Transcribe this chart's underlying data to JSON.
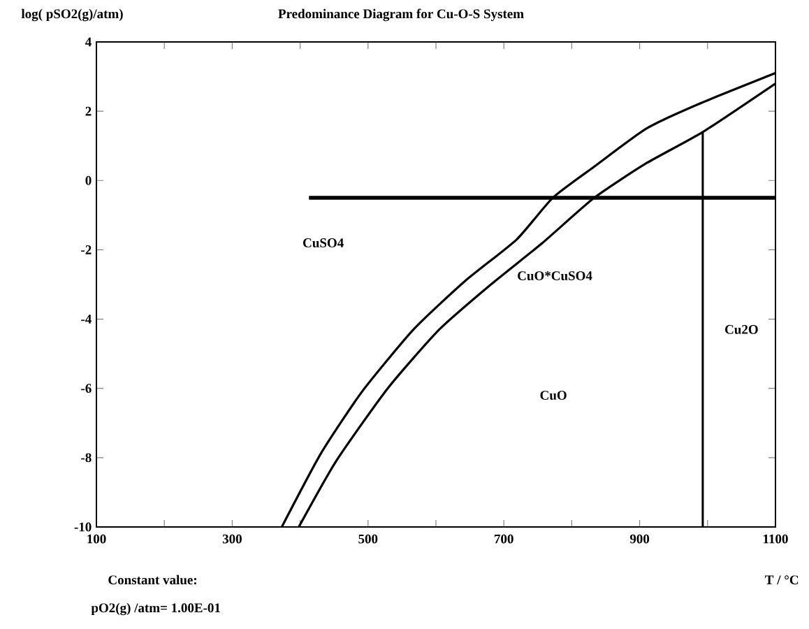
{
  "chart_data": {
    "type": "line",
    "title": "Predominance Diagram for Cu-O-S System",
    "xlabel": "T / °C",
    "ylabel": "log( pSO2(g)/atm)",
    "xlim": [
      100,
      1100
    ],
    "ylim": [
      -10,
      4
    ],
    "xticks": [
      100,
      {
        "value": 200,
        "label": null
      },
      300,
      {
        "value": 400,
        "label": null
      },
      500,
      {
        "value": 600,
        "label": null
      },
      700,
      {
        "value": 800,
        "label": null
      },
      900,
      {
        "value": 1000,
        "label": null
      },
      1100
    ],
    "yticks": [
      -10,
      -8,
      -6,
      -4,
      -2,
      0,
      2,
      4
    ],
    "grid": false,
    "series": [
      {
        "color": "#000000",
        "x": [
          373,
          430,
          491,
          567,
          643,
          719,
          772,
          833,
          910,
          986,
          1100
        ],
        "values": [
          -10,
          -7.9,
          -6.1,
          -4.3,
          -2.9,
          -1.7,
          -0.5,
          0.4,
          1.5,
          2.2,
          3.1
        ]
      },
      {
        "color": "#000000",
        "x": [
          398,
          453,
          529,
          605,
          681,
          757,
          833,
          910,
          993,
          1100
        ],
        "values": [
          -10,
          -8.1,
          -6.0,
          -4.3,
          -3.0,
          -1.8,
          -0.5,
          0.5,
          1.4,
          2.8
        ]
      },
      {
        "color": "#000000",
        "x": [
          993,
          993
        ],
        "values": [
          -10,
          1.4
        ]
      },
      {
        "color": "#000000",
        "x": [
          1100,
          413
        ],
        "values": [
          -0.5,
          -0.5
        ]
      }
    ],
    "annotations": [
      "CuSO4",
      "CuO*CuSO4",
      "Cu2O",
      "CuO",
      "Constant value:",
      "pO2(g) /atm= 1.00E-01"
    ]
  }
}
